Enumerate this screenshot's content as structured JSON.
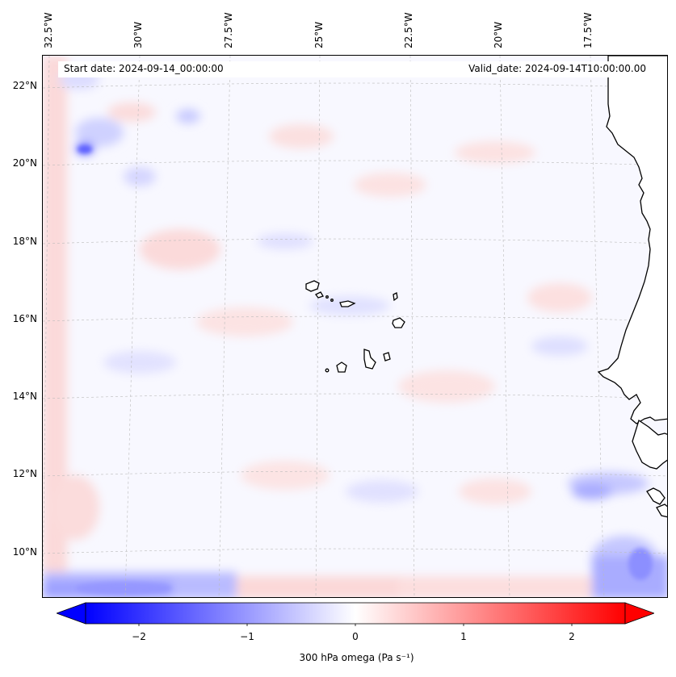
{
  "map": {
    "header": {
      "start_date": "Start date: 2024-09-14_00:00:00",
      "valid_date": "Valid_date: 2024-09-14T10:00:00.00"
    },
    "longitude_labels": [
      "32.5°W",
      "30°W",
      "27.5°W",
      "25°W",
      "22.5°W",
      "20°W",
      "17.5°W"
    ],
    "latitude_labels": [
      "22°N",
      "20°N",
      "18°N",
      "16°N",
      "14°N",
      "12°N",
      "10°N"
    ],
    "extent": {
      "lon_min": -33.0,
      "lon_max": -16.0,
      "lat_min": 8.9,
      "lat_max": 22.7
    },
    "gridlines": true,
    "coastlines": [
      "Cape Verde islands",
      "West African coast"
    ],
    "field": "300 hPa omega"
  },
  "colorbar": {
    "label": "300 hPa omega (Pa s⁻¹)",
    "ticks": [
      "−2",
      "−1",
      "0",
      "1",
      "2"
    ],
    "range": [
      -2.5,
      2.5
    ],
    "extend": "both",
    "colormap": "bwr",
    "colors": {
      "negative": "#0000ff",
      "zero": "#ffffff",
      "positive": "#ff0000"
    }
  }
}
